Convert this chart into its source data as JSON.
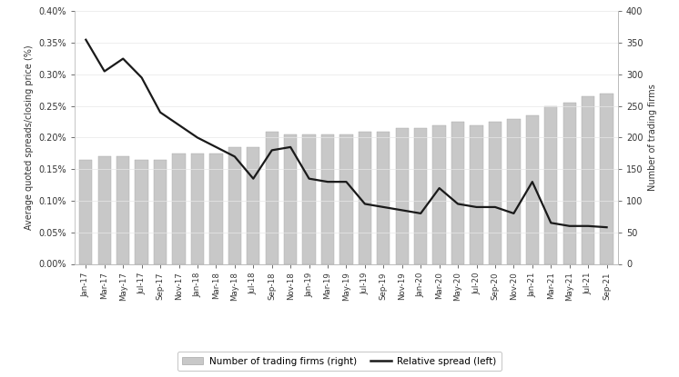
{
  "labels": [
    "Jan-17",
    "Mar-17",
    "May-17",
    "Jul-17",
    "Sep-17",
    "Nov-17",
    "Jan-18",
    "Mar-18",
    "May-18",
    "Jul-18",
    "Sep-18",
    "Nov-18",
    "Jan-19",
    "Mar-19",
    "May-19",
    "Jul-19",
    "Sep-19",
    "Nov-19",
    "Jan-20",
    "Mar-20",
    "May-20",
    "Jul-20",
    "Sep-20",
    "Nov-20",
    "Jan-21",
    "Mar-21",
    "May-21",
    "Jul-21",
    "Sep-21"
  ],
  "bar_values": [
    165,
    170,
    170,
    165,
    165,
    175,
    175,
    175,
    185,
    185,
    210,
    205,
    205,
    205,
    205,
    210,
    210,
    215,
    215,
    220,
    225,
    220,
    225,
    230,
    235,
    250,
    255,
    265,
    270
  ],
  "line_values": [
    0.00355,
    0.00305,
    0.00325,
    0.00295,
    0.0024,
    0.0022,
    0.002,
    0.00185,
    0.0017,
    0.00135,
    0.0018,
    0.00185,
    0.00135,
    0.0013,
    0.0013,
    0.00095,
    0.0009,
    0.00085,
    0.0008,
    0.0012,
    0.00095,
    0.0009,
    0.0009,
    0.0008,
    0.0013,
    0.00065,
    0.0006,
    0.0006,
    0.00058
  ],
  "bar_color": "#c8c8c8",
  "bar_edge_color": "#a8a8a8",
  "line_color": "#1a1a1a",
  "left_ylabel": "Average quoted spreads/closing price (%)",
  "right_ylabel": "Number of trading firms",
  "left_ylim": [
    0,
    0.004
  ],
  "right_ylim": [
    0,
    400
  ],
  "left_ytick_vals": [
    0.0,
    0.0005,
    0.001,
    0.0015,
    0.002,
    0.0025,
    0.003,
    0.0035,
    0.004
  ],
  "left_ytick_labels": [
    "0.00%",
    "0.05%",
    "0.10%",
    "0.15%",
    "0.20%",
    "0.25%",
    "0.30%",
    "0.35%",
    "0.40%"
  ],
  "right_yticks": [
    0,
    50,
    100,
    150,
    200,
    250,
    300,
    350,
    400
  ],
  "legend_bar_label": "Number of trading firms (right)",
  "legend_line_label": "Relative spread (left)",
  "bg_color": "#ffffff",
  "text_color": "#333333",
  "axis_color": "#888888"
}
